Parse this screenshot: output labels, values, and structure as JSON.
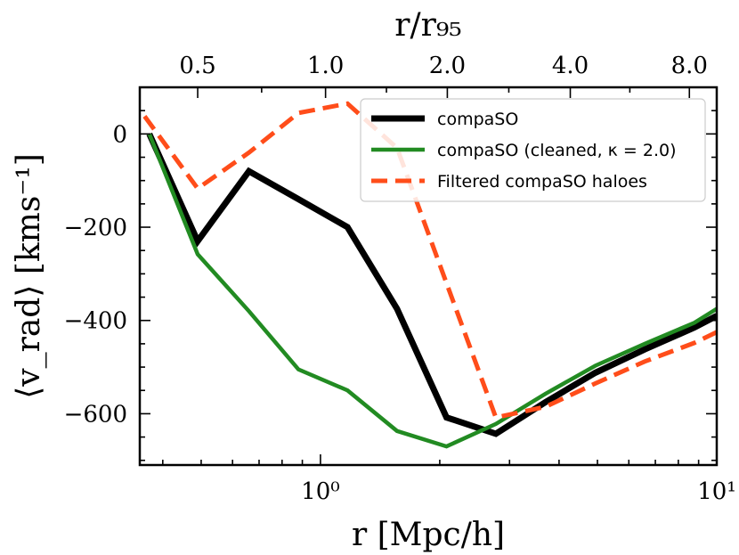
{
  "chart_data": {
    "type": "line",
    "xlabel": "r [Mpc/h]",
    "ylabel": "⟨v_rad⟩ [kms⁻¹]",
    "top_xlabel": "r/r₉₅",
    "x_scale": "log",
    "xlim": [
      0.35,
      10
    ],
    "ylim": [
      -710,
      100
    ],
    "x_ticks": [
      {
        "value": 1,
        "label": "10⁰"
      },
      {
        "value": 10,
        "label": "10¹"
      }
    ],
    "y_ticks": [
      {
        "value": 0,
        "label": "0"
      },
      {
        "value": -200,
        "label": "−200"
      },
      {
        "value": -400,
        "label": "−400"
      },
      {
        "value": -600,
        "label": "−600"
      }
    ],
    "top_ticks": [
      {
        "x": 0.49,
        "label": "0.5"
      },
      {
        "x": 1.03,
        "label": "1.0"
      },
      {
        "x": 2.09,
        "label": "2.0"
      },
      {
        "x": 4.27,
        "label": "4.0"
      },
      {
        "x": 8.53,
        "label": "8.0"
      }
    ],
    "legend_position": "top-right",
    "series": [
      {
        "name": "compaSO",
        "color": "#000000",
        "style": "solid",
        "x": [
          0.37,
          0.49,
          0.66,
          0.88,
          1.17,
          1.56,
          2.08,
          2.77,
          3.7,
          4.94,
          6.58,
          8.78,
          10.0
        ],
        "y": [
          0,
          -230,
          -80,
          -140,
          -200,
          -375,
          -608,
          -643,
          -575,
          -512,
          -462,
          -415,
          -390
        ]
      },
      {
        "name": "compaSO (cleaned, κ = 2.0)",
        "color": "#228b22",
        "style": "solid",
        "x": [
          0.37,
          0.49,
          0.66,
          0.88,
          1.17,
          1.56,
          2.08,
          2.77,
          3.7,
          4.94,
          6.58,
          8.78,
          10.0
        ],
        "y": [
          0,
          -258,
          -380,
          -505,
          -550,
          -637,
          -670,
          -622,
          -557,
          -497,
          -450,
          -405,
          -375
        ]
      },
      {
        "name": "Filtered compaSO haloes",
        "color": "#ff4d1a",
        "style": "dashed",
        "x": [
          0.36,
          0.49,
          0.66,
          0.88,
          1.17,
          1.56,
          2.08,
          2.77,
          3.7,
          4.94,
          6.58,
          8.78,
          10.0
        ],
        "y": [
          38,
          -117,
          -40,
          45,
          65,
          -30,
          -320,
          -608,
          -585,
          -535,
          -488,
          -448,
          -425
        ]
      }
    ]
  }
}
